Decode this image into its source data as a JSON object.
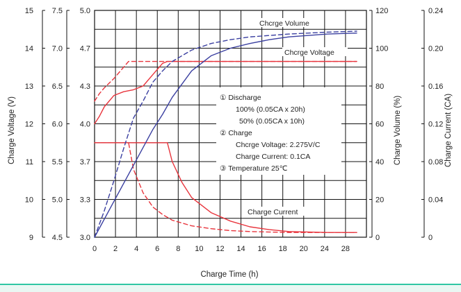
{
  "chart_data": {
    "type": "line",
    "xlabel": "Charge Time (h)",
    "x_ticks": [
      "0",
      "2",
      "4",
      "6",
      "8",
      "10",
      "12",
      "14",
      "16",
      "18",
      "20",
      "24",
      "28"
    ],
    "xlim": [
      0,
      28
    ],
    "left_axes": [
      {
        "title": "Charge Voltage (V)",
        "ticks": [
          "15",
          "14",
          "13",
          "12",
          "11",
          "10",
          "9"
        ]
      },
      {
        "title": "",
        "ticks": [
          "7.5",
          "7.0",
          "6.5",
          "6.0",
          "5.5",
          "5.0",
          "4.5"
        ]
      },
      {
        "title": "",
        "ticks": [
          "5.0",
          "4.7",
          "4.3",
          "4.0",
          "3.7",
          "3.3",
          "3.0"
        ]
      }
    ],
    "right_axes": [
      {
        "title": "Charge Volume (%)",
        "ticks": [
          "120",
          "100",
          "80",
          "60",
          "40",
          "20",
          "0"
        ]
      },
      {
        "title": "Charge Current (CA)",
        "ticks": [
          "0.24",
          "0.20",
          "0.16",
          "0.12",
          "0.08",
          "0.04",
          "0"
        ]
      }
    ],
    "grid": true,
    "annotations": {
      "volume_label": "Chcrge Volume",
      "voltage_label": "Chcrge Voltage",
      "current_label": "Charge Current",
      "legend": [
        "①  Discharge",
        "100%  (0.05CA x 20h)",
        "50%  (0.05CA x 10h)",
        "②  Charge",
        "Chcrge Voltage: 2.275V/C",
        "Charge Current: 0.1CA",
        "③  Temperature 25℃"
      ]
    },
    "colors": {
      "voltage": "#e8343c",
      "current": "#e8343c",
      "volume": "#3a3fa0",
      "grid": "#111111"
    },
    "series": [
      {
        "name": "Chcrge Voltage",
        "line": "solid",
        "axis": "voltage",
        "x": [
          0,
          0.5,
          1,
          2,
          3,
          4,
          5,
          6,
          7,
          7.5,
          27
        ],
        "y": [
          12.0,
          12.2,
          12.45,
          12.75,
          12.85,
          12.9,
          13.0,
          13.3,
          13.6,
          13.65,
          13.65
        ]
      },
      {
        "name": "Chcrge Voltage",
        "line": "dashed",
        "axis": "voltage",
        "x": [
          0,
          0.5,
          1,
          2,
          3,
          3.5,
          27
        ],
        "y": [
          12.6,
          12.8,
          12.95,
          13.2,
          13.5,
          13.65,
          13.65
        ]
      },
      {
        "name": "Charge Current",
        "line": "solid",
        "axis": "current",
        "x": [
          0,
          7.5,
          8,
          9,
          10,
          12,
          14,
          16,
          18,
          20,
          24,
          27
        ],
        "y": [
          0.1,
          0.1,
          0.08,
          0.058,
          0.042,
          0.026,
          0.017,
          0.011,
          0.008,
          0.006,
          0.005,
          0.005
        ]
      },
      {
        "name": "Charge Current",
        "line": "dashed",
        "axis": "current",
        "x": [
          0,
          3.5,
          4,
          5,
          6,
          7,
          8,
          10,
          12,
          14,
          16,
          20,
          24,
          27
        ],
        "y": [
          0.1,
          0.1,
          0.072,
          0.047,
          0.032,
          0.024,
          0.018,
          0.012,
          0.009,
          0.007,
          0.006,
          0.005,
          0.005,
          0.005
        ]
      },
      {
        "name": "Chcrge Volume",
        "line": "solid",
        "axis": "volume",
        "x": [
          0,
          2,
          4,
          6,
          7,
          8,
          10,
          12,
          14,
          16,
          18,
          20,
          24,
          27
        ],
        "y": [
          0,
          19,
          38,
          57,
          65,
          74,
          88,
          96,
          100,
          102.5,
          104.5,
          106,
          107.5,
          108
        ]
      },
      {
        "name": "Chcrge Volume",
        "line": "dashed",
        "axis": "volume",
        "x": [
          0,
          1,
          2,
          3,
          4,
          5,
          6,
          7,
          8,
          10,
          12,
          14,
          16,
          20,
          24,
          27
        ],
        "y": [
          0,
          14,
          30,
          47,
          63,
          72,
          82,
          88,
          93,
          99,
          102.5,
          104.5,
          106,
          107.5,
          108.5,
          109
        ]
      }
    ]
  }
}
